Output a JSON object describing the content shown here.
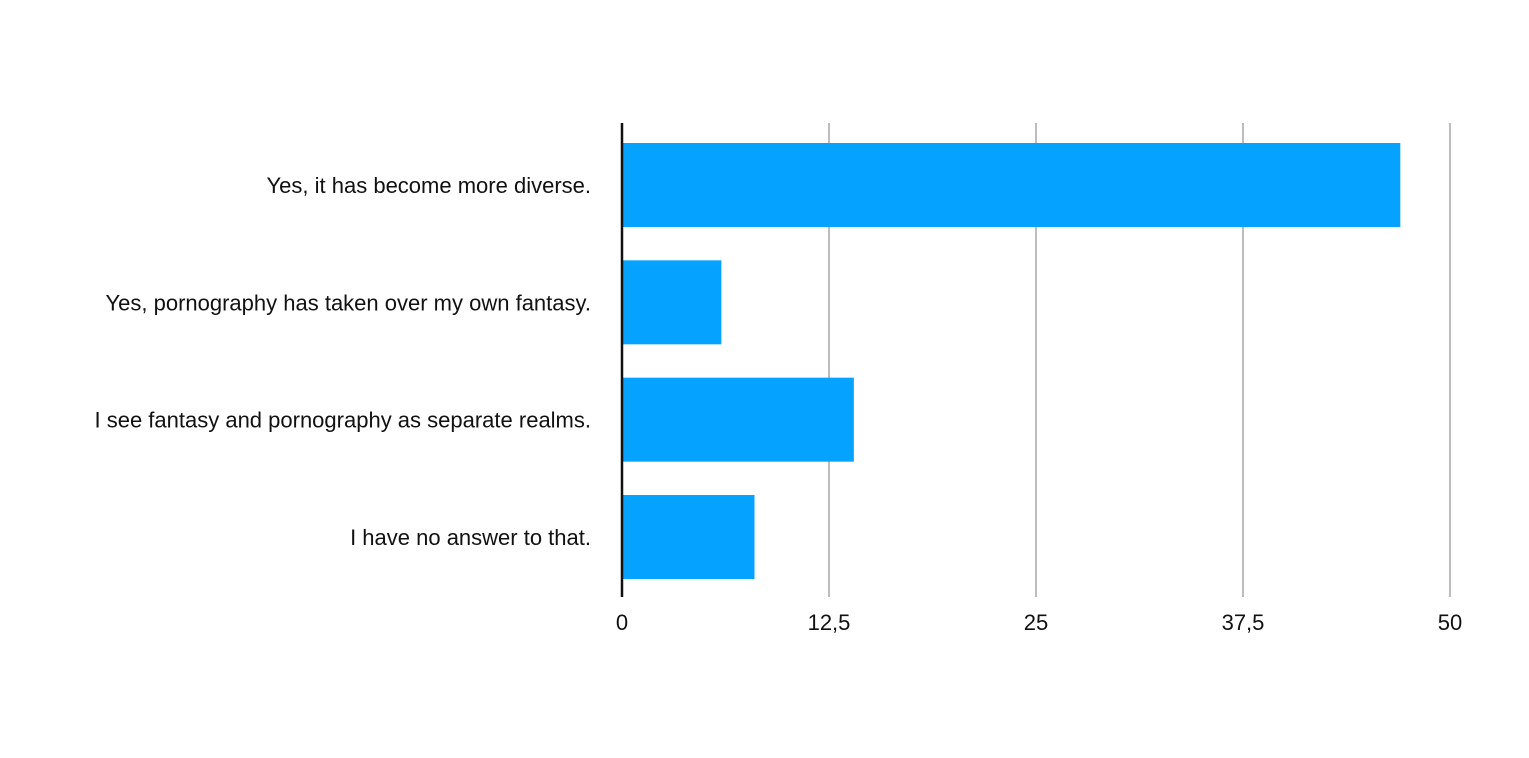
{
  "chart_data": {
    "type": "bar",
    "orientation": "horizontal",
    "title": "",
    "xlabel": "",
    "ylabel": "",
    "categories": [
      "Yes, it has become more diverse.",
      "Yes, pornography has taken over my own fantasy.",
      "I see fantasy and pornography as separate realms.",
      "I have no answer to that."
    ],
    "values": [
      47,
      6,
      14,
      8
    ],
    "xlim": [
      0,
      50
    ],
    "xticks": [
      0,
      12.5,
      25,
      37.5,
      50
    ],
    "xtick_labels": [
      "0",
      "12,5",
      "25",
      "37,5",
      "50"
    ],
    "grid": "vertical",
    "legend": "none",
    "bar_color": "#05A2FF"
  }
}
